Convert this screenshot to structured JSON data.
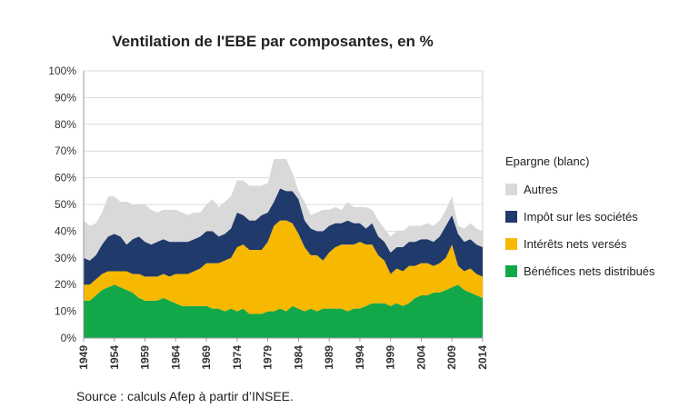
{
  "chart_data": {
    "type": "area",
    "stacked": true,
    "title": "Ventilation de l'EBE par composantes, en %",
    "source": "Source : calculs Afep à partir d’INSEE.",
    "xlabel": "",
    "ylabel": "",
    "ylim": [
      0,
      100
    ],
    "y_ticks": [
      "0%",
      "10%",
      "20%",
      "30%",
      "40%",
      "50%",
      "60%",
      "70%",
      "80%",
      "90%",
      "100%"
    ],
    "x_ticks": [
      1949,
      1954,
      1959,
      1964,
      1969,
      1974,
      1979,
      1984,
      1989,
      1994,
      1999,
      2004,
      2009,
      2014
    ],
    "x_range": [
      1949,
      2014
    ],
    "legend_title": "Epargne (blanc)",
    "legend_position": "right",
    "legend_order": [
      3,
      2,
      1,
      0
    ],
    "x": [
      1949,
      1950,
      1951,
      1952,
      1953,
      1954,
      1955,
      1956,
      1957,
      1958,
      1959,
      1960,
      1961,
      1962,
      1963,
      1964,
      1965,
      1966,
      1967,
      1968,
      1969,
      1970,
      1971,
      1972,
      1973,
      1974,
      1975,
      1976,
      1977,
      1978,
      1979,
      1980,
      1981,
      1982,
      1983,
      1984,
      1985,
      1986,
      1987,
      1988,
      1989,
      1990,
      1991,
      1992,
      1993,
      1994,
      1995,
      1996,
      1997,
      1998,
      1999,
      2000,
      2001,
      2002,
      2003,
      2004,
      2005,
      2006,
      2007,
      2008,
      2009,
      2010,
      2011,
      2012,
      2013,
      2014
    ],
    "series": [
      {
        "name": "Bénéfices nets distribués",
        "color": "#12a84a",
        "values": [
          14,
          14,
          16,
          18,
          19,
          20,
          19,
          18,
          17,
          15,
          14,
          14,
          14,
          15,
          14,
          13,
          12,
          12,
          12,
          12,
          12,
          11,
          11,
          10,
          11,
          10,
          11,
          9,
          9,
          9,
          10,
          10,
          11,
          10,
          12,
          11,
          10,
          11,
          10,
          11,
          11,
          11,
          11,
          10,
          11,
          11,
          12,
          13,
          13,
          13,
          12,
          13,
          12,
          13,
          15,
          16,
          16,
          17,
          17,
          18,
          19,
          20,
          18,
          17,
          16,
          15
        ]
      },
      {
        "name": "Intérêts nets versés",
        "color": "#f7b800",
        "values": [
          6,
          6,
          6,
          6,
          6,
          5,
          6,
          7,
          7,
          9,
          9,
          9,
          9,
          9,
          9,
          11,
          12,
          12,
          13,
          14,
          16,
          17,
          17,
          19,
          19,
          24,
          24,
          24,
          24,
          24,
          26,
          32,
          33,
          34,
          31,
          28,
          24,
          20,
          21,
          18,
          21,
          23,
          24,
          25,
          24,
          25,
          23,
          22,
          18,
          16,
          12,
          13,
          13,
          14,
          12,
          12,
          12,
          10,
          11,
          12,
          16,
          7,
          7,
          9,
          8,
          8
        ]
      },
      {
        "name": "Impôt sur les sociétés",
        "color": "#1f3a6b",
        "values": [
          10,
          9,
          9,
          11,
          13,
          14,
          13,
          10,
          13,
          14,
          13,
          12,
          13,
          13,
          13,
          12,
          12,
          12,
          12,
          12,
          12,
          12,
          10,
          10,
          11,
          13,
          11,
          11,
          11,
          13,
          11,
          9,
          12,
          11,
          12,
          13,
          10,
          10,
          9,
          11,
          10,
          9,
          8,
          9,
          8,
          7,
          6,
          8,
          7,
          7,
          8,
          8,
          9,
          9,
          9,
          9,
          9,
          9,
          10,
          12,
          11,
          12,
          11,
          11,
          11,
          11
        ]
      },
      {
        "name": "Autres",
        "color": "#d9d9d9",
        "values": [
          14,
          13,
          12,
          12,
          15,
          14,
          13,
          16,
          13,
          12,
          14,
          13,
          11,
          11,
          12,
          12,
          11,
          10,
          10,
          9,
          10,
          12,
          11,
          12,
          12,
          12,
          13,
          13,
          13,
          11,
          11,
          16,
          11,
          12,
          7,
          3,
          7,
          5,
          7,
          8,
          6,
          6,
          5,
          7,
          6,
          6,
          8,
          5,
          6,
          5,
          6,
          6,
          6,
          6,
          6,
          5,
          6,
          6,
          6,
          6,
          7,
          3,
          5,
          6,
          6,
          6
        ]
      }
    ]
  }
}
